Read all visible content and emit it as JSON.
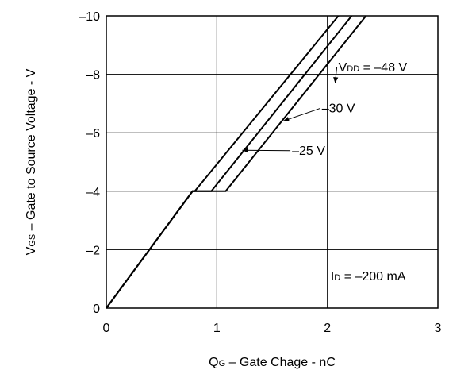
{
  "chart_data": {
    "type": "line",
    "title": "",
    "xlabel": {
      "main": "Q",
      "sub": "G",
      "rest": " – Gate Chage - nC"
    },
    "ylabel": {
      "main": "V",
      "sub": "GS",
      "rest": " – Gate to Source Voltage - V"
    },
    "xlim": [
      0,
      3
    ],
    "ylim": [
      0,
      -10
    ],
    "xticks": [
      0,
      1,
      2,
      3
    ],
    "yticks": [
      0,
      -2,
      -4,
      -6,
      -8,
      -10
    ],
    "xtick_labels": [
      "0",
      "1",
      "2",
      "3"
    ],
    "ytick_labels": [
      "0",
      "–2",
      "–4",
      "–6",
      "–8",
      "–10"
    ],
    "grid": true,
    "series": [
      {
        "x": [
          0,
          0.78,
          0.8,
          2.1
        ],
        "y": [
          0,
          -4,
          -4,
          -10
        ]
      },
      {
        "x": [
          0,
          0.78,
          0.95,
          2.22
        ],
        "y": [
          0,
          -4,
          -4,
          -10
        ]
      },
      {
        "x": [
          0,
          0.78,
          1.08,
          2.35
        ],
        "y": [
          0,
          -4,
          -4,
          -10
        ]
      }
    ],
    "annotations": [
      {
        "id": "vdd48",
        "main": "V",
        "sub": "DD",
        "rest": " = –48 V",
        "text_at": [
          2.1,
          -8.1
        ],
        "arrow_to": [
          2.07,
          -7.7
        ]
      },
      {
        "id": "vdd30",
        "main": "",
        "sub": "",
        "rest": "–30 V",
        "text_at": [
          1.95,
          -6.7
        ],
        "arrow_to": [
          1.6,
          -6.4
        ]
      },
      {
        "id": "vdd25",
        "main": "",
        "sub": "",
        "rest": "–25 V",
        "text_at": [
          1.68,
          -5.25
        ],
        "arrow_to": [
          1.23,
          -5.4
        ]
      },
      {
        "id": "id",
        "main": "I",
        "sub": "D",
        "rest": " = –200 mA",
        "text_at": [
          2.03,
          -0.95
        ],
        "arrow_to": null
      }
    ]
  }
}
